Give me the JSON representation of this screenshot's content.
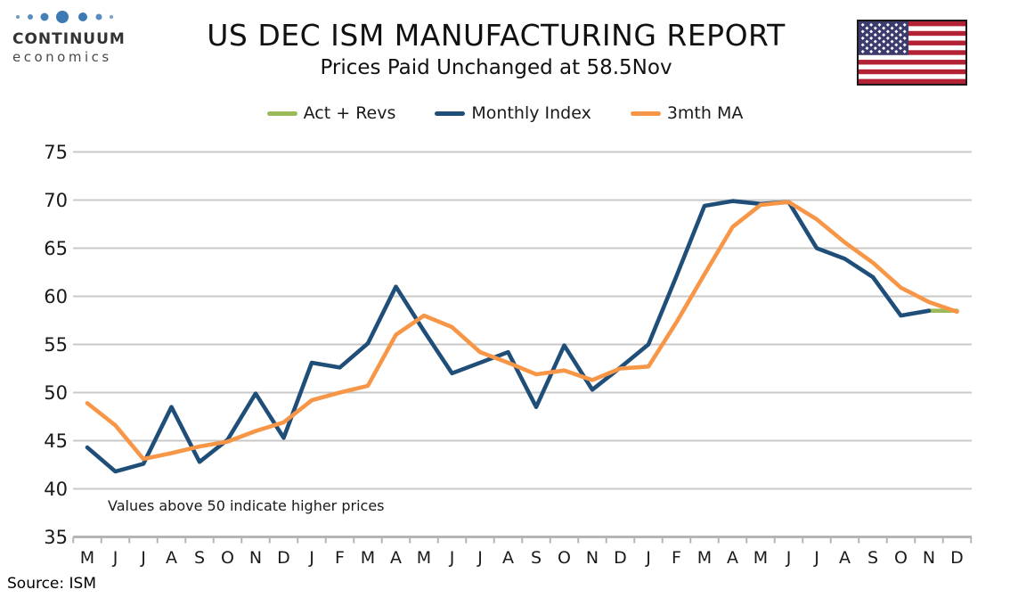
{
  "logo": {
    "line1": "CONTINUUM",
    "line2": "economics",
    "dot_color": "#3D79B2"
  },
  "header": {
    "title": "US DEC ISM MANUFACTURING REPORT",
    "subtitle": "Prices Paid Unchanged at 58.5Nov"
  },
  "flag": {
    "red": "#B22234",
    "white": "#FFFFFF",
    "navy": "#3C3B6E"
  },
  "source": "Source: ISM",
  "chart_data": {
    "type": "line",
    "title": "US DEC ISM MANUFACTURING REPORT",
    "subtitle": "Prices Paid Unchanged at 58.5Nov",
    "annotation": "Values above 50 indicate higher prices",
    "grid": true,
    "legend_position": "top",
    "ylim": [
      35,
      75
    ],
    "ytick_step": 5,
    "yticks": [
      35,
      40,
      45,
      50,
      55,
      60,
      65,
      70,
      75
    ],
    "categories": [
      "M",
      "J",
      "J",
      "A",
      "S",
      "O",
      "N",
      "D",
      "J",
      "F",
      "M",
      "A",
      "M",
      "J",
      "J",
      "A",
      "S",
      "O",
      "N",
      "D",
      "J",
      "F",
      "M",
      "A",
      "M",
      "J",
      "J",
      "A",
      "S",
      "O",
      "N",
      "D"
    ],
    "series": [
      {
        "name": "Act + Revs",
        "color": "#9BBB59",
        "start_index": 30,
        "values": [
          58.5,
          58.5
        ]
      },
      {
        "name": "Monthly Index",
        "color": "#1F4E79",
        "start_index": 0,
        "values": [
          44.3,
          41.8,
          42.6,
          48.5,
          42.8,
          45.1,
          49.9,
          45.3,
          53.1,
          52.6,
          55.1,
          61.0,
          56.4,
          52.0,
          53.1,
          54.2,
          48.5,
          54.9,
          50.3,
          52.6,
          55.0,
          62.1,
          69.4,
          69.9,
          69.6,
          69.8,
          65.0,
          63.9,
          62.0,
          58.0,
          58.5
        ]
      },
      {
        "name": "3mth MA",
        "color": "#F79646",
        "start_index": 0,
        "values": [
          48.9,
          46.6,
          43.1,
          43.7,
          44.4,
          44.9,
          46.0,
          46.9,
          49.2,
          50.0,
          50.7,
          56.0,
          58.0,
          56.8,
          54.2,
          53.1,
          51.9,
          52.3,
          51.3,
          52.5,
          52.7,
          57.3,
          62.3,
          67.2,
          69.5,
          69.8,
          68.0,
          65.6,
          63.5,
          60.9,
          59.4,
          58.4
        ]
      }
    ]
  }
}
